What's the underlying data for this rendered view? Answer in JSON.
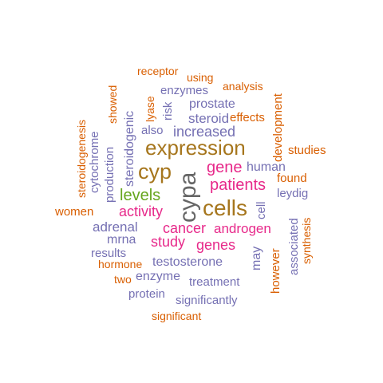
{
  "palette": {
    "orange": "#d95f02",
    "purple": "#7570b3",
    "magenta": "#e7298a",
    "green": "#66a61e",
    "olive": "#a6761d",
    "gray": "#666666"
  },
  "words": [
    {
      "text": "receptor",
      "color": "orange"
    },
    {
      "text": "using",
      "color": "orange"
    },
    {
      "text": "analysis",
      "color": "orange"
    },
    {
      "text": "enzymes",
      "color": "purple"
    },
    {
      "text": "prostate",
      "color": "purple"
    },
    {
      "text": "effects",
      "color": "orange"
    },
    {
      "text": "steroid",
      "color": "purple"
    },
    {
      "text": "also",
      "color": "purple"
    },
    {
      "text": "increased",
      "color": "purple"
    },
    {
      "text": "studies",
      "color": "orange"
    },
    {
      "text": "expression",
      "color": "olive"
    },
    {
      "text": "cyp",
      "color": "olive"
    },
    {
      "text": "gene",
      "color": "magenta"
    },
    {
      "text": "human",
      "color": "purple"
    },
    {
      "text": "found",
      "color": "orange"
    },
    {
      "text": "patients",
      "color": "magenta"
    },
    {
      "text": "levels",
      "color": "green"
    },
    {
      "text": "leydig",
      "color": "purple"
    },
    {
      "text": "cells",
      "color": "olive"
    },
    {
      "text": "women",
      "color": "orange"
    },
    {
      "text": "activity",
      "color": "magenta"
    },
    {
      "text": "cancer",
      "color": "magenta"
    },
    {
      "text": "androgen",
      "color": "magenta"
    },
    {
      "text": "adrenal",
      "color": "purple"
    },
    {
      "text": "mrna",
      "color": "purple"
    },
    {
      "text": "study",
      "color": "magenta"
    },
    {
      "text": "genes",
      "color": "magenta"
    },
    {
      "text": "results",
      "color": "purple"
    },
    {
      "text": "hormone",
      "color": "orange"
    },
    {
      "text": "testosterone",
      "color": "purple"
    },
    {
      "text": "two",
      "color": "orange"
    },
    {
      "text": "enzyme",
      "color": "purple"
    },
    {
      "text": "treatment",
      "color": "purple"
    },
    {
      "text": "protein",
      "color": "purple"
    },
    {
      "text": "significantly",
      "color": "purple"
    },
    {
      "text": "significant",
      "color": "orange"
    },
    {
      "text": "steroidogenesis",
      "color": "orange"
    },
    {
      "text": "cytochrome",
      "color": "purple"
    },
    {
      "text": "showed",
      "color": "orange"
    },
    {
      "text": "production",
      "color": "purple"
    },
    {
      "text": "steroidogenic",
      "color": "purple"
    },
    {
      "text": "lyase",
      "color": "orange"
    },
    {
      "text": "risk",
      "color": "purple"
    },
    {
      "text": "cypa",
      "color": "gray"
    },
    {
      "text": "development",
      "color": "orange"
    },
    {
      "text": "cell",
      "color": "purple"
    },
    {
      "text": "may",
      "color": "purple"
    },
    {
      "text": "however",
      "color": "orange"
    },
    {
      "text": "associated",
      "color": "purple"
    },
    {
      "text": "synthesis",
      "color": "orange"
    }
  ]
}
